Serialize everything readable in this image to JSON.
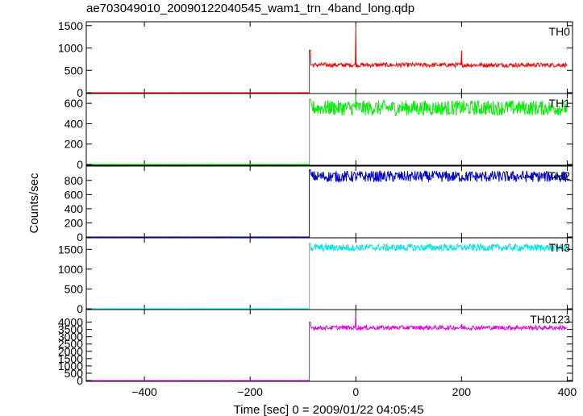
{
  "title": "ae703049010_20090122040545_wam1_trn_4band_long.qdp",
  "chart_data": {
    "type": "line",
    "xlabel": "Time [sec] 0 = 2009/01/22 04:05:45",
    "ylabel": "Counts/sec",
    "xlim": [
      -510,
      410
    ],
    "x_ticks": [
      -400,
      -200,
      0,
      200,
      400
    ],
    "x_tick_labels": [
      "−400",
      "−200",
      "0",
      "200",
      "400"
    ],
    "trigger_time": -88,
    "panels": [
      {
        "name": "TH0",
        "color": "#ff0000",
        "ylim": [
          0,
          1550
        ],
        "y_ticks": [
          0,
          500,
          1000,
          1500
        ],
        "pre_level": 0,
        "peak": 950,
        "post_level": 620,
        "noise": 50,
        "spikes": [
          {
            "x": 0,
            "y": 1550
          },
          {
            "x": 200,
            "y": 940
          }
        ]
      },
      {
        "name": "TH1",
        "color": "#00ee00",
        "ylim": [
          0,
          680
        ],
        "y_ticks": [
          0,
          200,
          400,
          600
        ],
        "pre_level": 0,
        "peak": 640,
        "post_level": 555,
        "noise": 75,
        "spikes": [
          {
            "x": 0,
            "y": 690
          }
        ]
      },
      {
        "name": "TH2",
        "color": "#0000cc",
        "ylim": [
          0,
          980
        ],
        "y_ticks": [
          0,
          200,
          400,
          600,
          800
        ],
        "pre_level": 0,
        "peak": 950,
        "post_level": 855,
        "noise": 80,
        "spikes": []
      },
      {
        "name": "TH3",
        "color": "#00e5e5",
        "ylim": [
          0,
          1750
        ],
        "y_ticks": [
          0,
          500,
          1000,
          1500
        ],
        "pre_level": 0,
        "peak": 1650,
        "post_level": 1545,
        "noise": 90,
        "spikes": []
      },
      {
        "name": "TH0123",
        "color": "#e000e0",
        "ylim": [
          0,
          4750
        ],
        "y_ticks": [
          0,
          500,
          1000,
          1500,
          2000,
          2500,
          3000,
          3500,
          4000
        ],
        "pre_level": 0,
        "peak": 4000,
        "post_level": 3620,
        "noise": 150,
        "spikes": [
          {
            "x": 0,
            "y": 4750
          },
          {
            "x": 200,
            "y": 3850
          }
        ]
      }
    ]
  }
}
